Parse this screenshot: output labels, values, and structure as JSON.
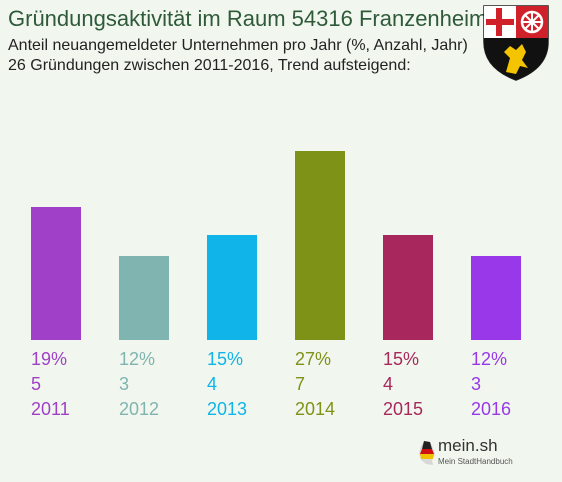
{
  "header": {
    "title": "Gründungsaktivität im Raum 54316 Franzenheim",
    "subtitle_line1": "Anteil neuangemeldeter Unternehmen pro Jahr (%, Anzahl, Jahr)",
    "subtitle_line2": "26 Gründungen zwischen 2011-2016, Trend aufsteigend:"
  },
  "logo": {
    "name": "mein.sh",
    "tagline": "Mein StadtHandbuch"
  },
  "chart_data": {
    "type": "bar",
    "categories": [
      "2011",
      "2012",
      "2013",
      "2014",
      "2015",
      "2016"
    ],
    "values": [
      19,
      12,
      15,
      27,
      15,
      12
    ],
    "counts": [
      5,
      3,
      4,
      7,
      4,
      3
    ],
    "percent_labels": [
      "19%",
      "12%",
      "15%",
      "27%",
      "15%",
      "12%"
    ],
    "colors": [
      "#a040c8",
      "#80b4b0",
      "#10b4e8",
      "#7e9218",
      "#a8285e",
      "#9838e8"
    ],
    "ylim": [
      0,
      27
    ]
  }
}
